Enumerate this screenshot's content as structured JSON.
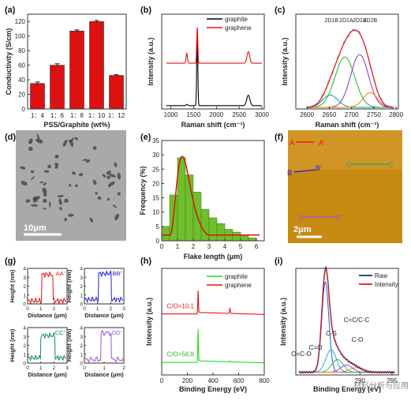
{
  "watermark": "材料分析与应用",
  "chart_data": [
    {
      "panel": "(a)",
      "type": "bar",
      "categories": [
        "1：4",
        "1：6",
        "1：8",
        "1：10",
        "1：12"
      ],
      "values": [
        35,
        60,
        107,
        120,
        46
      ],
      "errors": [
        2,
        2,
        1.5,
        1.5,
        1
      ],
      "xlabel": "PSS/Graphite (wt%)",
      "ylabel": "Conductivity (S/cm)",
      "ylim": [
        0,
        130
      ],
      "yticks": [
        0,
        20,
        40,
        60,
        80,
        100,
        120
      ],
      "bar_color": "#dd1111"
    },
    {
      "panel": "(b)",
      "type": "line",
      "xlabel": "Raman shift (cm⁻¹)",
      "ylabel": "Intensity (a.u.)",
      "xlim": [
        800,
        3050
      ],
      "xticks": [
        1000,
        1500,
        2000,
        2500,
        3000
      ],
      "legend_position": "top-right",
      "series": [
        {
          "name": "graphite",
          "color": "#000000",
          "baseline": 0,
          "peaks": [
            [
              1350,
              0.4,
              18
            ],
            [
              1580,
              22,
              12
            ],
            [
              2700,
              3.2,
              35
            ]
          ]
        },
        {
          "name": "graphene",
          "color": "#ee1111",
          "baseline": 13,
          "peaks": [
            [
              1350,
              3,
              15
            ],
            [
              1580,
              11,
              12
            ],
            [
              2700,
              3.5,
              30
            ]
          ]
        }
      ]
    },
    {
      "panel": "(c)",
      "type": "line",
      "xlabel": "Raman shift (cm⁻¹)",
      "ylabel": "Intensity (a.u.)",
      "xlim": [
        2575,
        2805
      ],
      "xticks": [
        2600,
        2650,
        2700,
        2750,
        2800
      ],
      "annotations": [
        "2D1B",
        "2D1A",
        "2D2A",
        "2D2B"
      ],
      "components": [
        {
          "center": 2652,
          "width": 17,
          "amp": 0.16,
          "color": "#1aa7a0"
        },
        {
          "center": 2685,
          "width": 22,
          "amp": 0.65,
          "color": "#33bb33"
        },
        {
          "center": 2718,
          "width": 20,
          "amp": 0.68,
          "color": "#9944cc"
        },
        {
          "center": 2742,
          "width": 16,
          "amp": 0.19,
          "color": "#ee8811"
        }
      ],
      "envelope_color": "#ee1111",
      "raw_color": "#3355dd"
    },
    {
      "panel": "(d)",
      "type": "image",
      "scale_label": "10μm"
    },
    {
      "panel": "(e)",
      "type": "bar",
      "categories": [
        "0.25",
        "0.75",
        "1.25",
        "1.75",
        "2.25",
        "2.75",
        "3.25",
        "3.75",
        "4.25",
        "4.75",
        "5.25",
        "5.75"
      ],
      "values": [
        5,
        16,
        29,
        23,
        17,
        11,
        8,
        6,
        4,
        3,
        2,
        1
      ],
      "xlabel": "Flake length (μm)",
      "ylabel": "Frequency (%)",
      "xlim": [
        0,
        6.5
      ],
      "ylim": [
        0,
        35
      ],
      "xticks": [
        0,
        1,
        2,
        3,
        4,
        5,
        6
      ],
      "yticks": [
        0,
        5,
        10,
        15,
        20,
        25,
        30,
        35
      ],
      "fit": {
        "type": "lognormal",
        "peak_x": 1.3,
        "peak_y": 29.5,
        "color": "#dd1111"
      }
    },
    {
      "panel": "(f)",
      "type": "image",
      "scale_label": "2μm",
      "line_labels": [
        "A",
        "A'",
        "B",
        "B'",
        "C",
        "C'",
        "D",
        "D'"
      ],
      "line_colors": [
        "#ee1111",
        "#2222dd",
        "#22aa66",
        "#9955cc"
      ]
    },
    {
      "panel": "(g)",
      "type": "line",
      "xlabel": "Distance (μm)",
      "ylabel": "Height (nm)",
      "subplots": [
        {
          "name": "AA'",
          "color": "#ee1111",
          "xlim": [
            0,
            3
          ],
          "ylim": [
            0,
            4
          ],
          "xticks": [
            0,
            1,
            2,
            3
          ],
          "yticks": [
            0,
            1,
            2,
            3,
            4
          ],
          "step": [
            1.05,
            1.95,
            0.35,
            3.3
          ]
        },
        {
          "name": "BB'",
          "color": "#2222dd",
          "xlim": [
            0,
            3
          ],
          "ylim": [
            0,
            4
          ],
          "xticks": [
            0,
            1,
            2,
            3
          ],
          "yticks": [
            0,
            1,
            2,
            3,
            4
          ],
          "step": [
            1.05,
            2.05,
            0.5,
            3.4
          ]
        },
        {
          "name": "CC'",
          "color": "#128a5a",
          "xlim": [
            0,
            3
          ],
          "ylim": [
            0,
            4
          ],
          "xticks": [
            0,
            1,
            2,
            3
          ],
          "yticks": [
            0,
            1,
            2,
            3,
            4
          ],
          "step": [
            1.0,
            2.1,
            0.6,
            3.1
          ]
        },
        {
          "name": "DD'",
          "color": "#9955cc",
          "xlim": [
            0,
            2
          ],
          "ylim": [
            0,
            4
          ],
          "xticks": [
            0,
            1,
            2
          ],
          "yticks": [
            0,
            1,
            2,
            3,
            4
          ],
          "step": [
            0.85,
            1.35,
            0.4,
            3.4
          ]
        }
      ]
    },
    {
      "panel": "(h)",
      "type": "line",
      "xlabel": "Binding Energy (eV)",
      "ylabel": "Intensity (a.u.)",
      "xlim": [
        0,
        800
      ],
      "xticks": [
        0,
        200,
        400,
        600,
        800
      ],
      "legend_position": "top-right",
      "annotations": [
        "C/O=10.1",
        "C/O=56.8"
      ],
      "series": [
        {
          "name": "graphite",
          "color": "#22dd22",
          "baseline": 0
        },
        {
          "name": "graphene",
          "color": "#ee1111",
          "baseline": 1
        }
      ]
    },
    {
      "panel": "(i)",
      "type": "line",
      "xlabel": "Binding Energy (eV)",
      "ylabel": "Intensity (a.u.)",
      "xlim": [
        280,
        296
      ],
      "xticks": [
        290,
        295
      ],
      "legend_position": "top-right",
      "series": [
        {
          "name": "Raw",
          "color": "#1a2f66"
        },
        {
          "name": "Intensity",
          "color": "#ee1111"
        }
      ],
      "annotations": [
        "C=C/C-C",
        "C-S",
        "C-O",
        "C=O",
        "O=C-O"
      ],
      "components": [
        {
          "center": 284.6,
          "width": 0.55,
          "amp": 1.0,
          "color": "#3355cc"
        },
        {
          "center": 285.5,
          "width": 0.8,
          "amp": 0.25,
          "color": "#22aacc"
        },
        {
          "center": 286.5,
          "width": 0.9,
          "amp": 0.14,
          "color": "#33bb55"
        },
        {
          "center": 287.9,
          "width": 0.9,
          "amp": 0.08,
          "color": "#9944cc"
        },
        {
          "center": 289.4,
          "width": 1.0,
          "amp": 0.05,
          "color": "#ee8811"
        }
      ]
    }
  ]
}
